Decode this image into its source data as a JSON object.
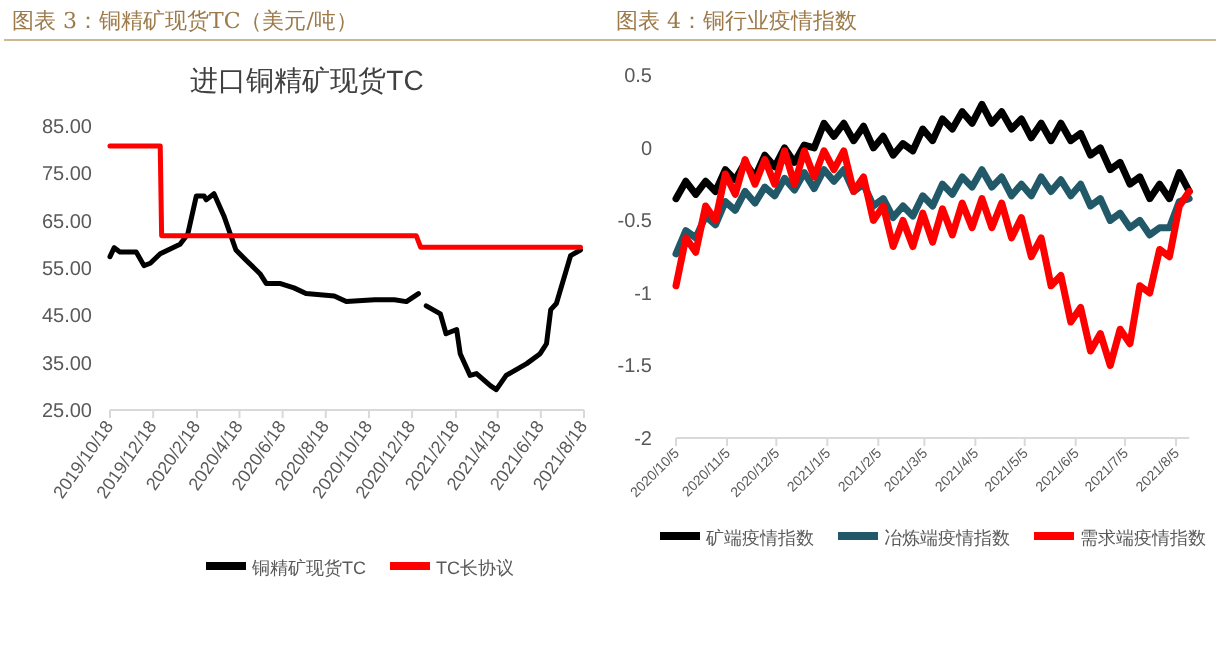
{
  "chart_data": [
    {
      "type": "line",
      "title": "图表 3：铜精矿现货TC（美元/吨）",
      "subtitle": "进口铜精矿现货TC",
      "xlim": [
        "2019-10-18",
        "2021-08-18"
      ],
      "xticks": [
        {
          "value": "2019-10-18",
          "label": "2019/10/18"
        },
        {
          "value": "2019-12-18",
          "label": "2019/12/18"
        },
        {
          "value": "2020-02-18",
          "label": "2020/2/18"
        },
        {
          "value": "2020-04-18",
          "label": "2020/4/18"
        },
        {
          "value": "2020-06-18",
          "label": "2020/6/18"
        },
        {
          "value": "2020-08-18",
          "label": "2020/8/18"
        },
        {
          "value": "2020-10-18",
          "label": "2020/10/18"
        },
        {
          "value": "2020-12-18",
          "label": "2020/12/18"
        },
        {
          "value": "2021-02-18",
          "label": "2021/2/18"
        },
        {
          "value": "2021-04-18",
          "label": "2021/4/18"
        },
        {
          "value": "2021-06-18",
          "label": "2021/6/18"
        },
        {
          "value": "2021-08-18",
          "label": "2021/8/18"
        }
      ],
      "ylim": [
        25,
        85
      ],
      "yticks": [
        {
          "value": 25,
          "label": "25.00"
        },
        {
          "value": 35,
          "label": "35.00"
        },
        {
          "value": 45,
          "label": "45.00"
        },
        {
          "value": 55,
          "label": "55.00"
        },
        {
          "value": 65,
          "label": "65.00"
        },
        {
          "value": 75,
          "label": "75.00"
        },
        {
          "value": 85,
          "label": "85.00"
        }
      ],
      "grid": false,
      "legend": "bottom",
      "series": [
        {
          "name": "铜精矿现货TC",
          "color": "#000000",
          "x": [
            "2019-10-18",
            "2019-10-24",
            "2019-11-01",
            "2019-11-24",
            "2019-12-05",
            "2019-12-14",
            "2019-12-28",
            "2020-01-25",
            "2020-02-05",
            "2020-02-17",
            "2020-02-28",
            "2020-03-02",
            "2020-03-13",
            "2020-03-27",
            "2020-04-13",
            "2020-04-27",
            "2020-05-17",
            "2020-05-26",
            "2020-06-15",
            "2020-07-04",
            "2020-07-21",
            "2020-08-30",
            "2020-09-16",
            "2020-10-26",
            "2020-11-23",
            "2020-12-10",
            "2020-12-27",
            "2021-01-01",
            "2021-01-07",
            "2021-01-27",
            "2021-02-04",
            "2021-02-19",
            "2021-02-24",
            "2021-03-10",
            "2021-03-19",
            "2021-04-08",
            "2021-04-16",
            "2021-04-30",
            "2021-05-29",
            "2021-06-17",
            "2021-06-26",
            "2021-07-02",
            "2021-07-10",
            "2021-07-30",
            "2021-08-13"
          ],
          "values": [
            57.4,
            59.3,
            58.4,
            58.4,
            55.5,
            56,
            58,
            60,
            62.2,
            70.2,
            70.2,
            69.4,
            70.7,
            66,
            58.8,
            56.7,
            53.8,
            51.7,
            51.7,
            50.8,
            49.6,
            49.1,
            47.9,
            48.3,
            48.3,
            47.9,
            49.6,
            null,
            47,
            45.3,
            41.1,
            42,
            36.9,
            32.3,
            32.7,
            30.1,
            29.3,
            32.3,
            34.8,
            36.9,
            39,
            46.2,
            47.5,
            57.6,
            58.8
          ]
        },
        {
          "name": "TC长协议",
          "color": "#ff0000",
          "x": [
            "2019-10-18",
            "2019-12-28",
            "2019-12-30",
            "2020-12-24",
            "2020-12-30",
            "2021-08-13"
          ],
          "values": [
            80.8,
            80.8,
            61.8,
            61.8,
            59.4,
            59.4
          ]
        }
      ]
    },
    {
      "type": "line",
      "title": "图表 4：铜行业疫情指数",
      "xlim": [
        "2020-10-05",
        "2021-08-13"
      ],
      "xticks": [
        {
          "value": "2020-10-05",
          "label": "2020/10/5"
        },
        {
          "value": "2020-11-05",
          "label": "2020/11/5"
        },
        {
          "value": "2020-12-05",
          "label": "2020/12/5"
        },
        {
          "value": "2021-01-05",
          "label": "2021/1/5"
        },
        {
          "value": "2021-02-05",
          "label": "2021/2/5"
        },
        {
          "value": "2021-03-05",
          "label": "2021/3/5"
        },
        {
          "value": "2021-04-05",
          "label": "2021/4/5"
        },
        {
          "value": "2021-05-05",
          "label": "2021/5/5"
        },
        {
          "value": "2021-06-05",
          "label": "2021/6/5"
        },
        {
          "value": "2021-07-05",
          "label": "2021/7/5"
        },
        {
          "value": "2021-08-05",
          "label": "2021/8/5"
        }
      ],
      "ylim": [
        -2,
        0.5
      ],
      "yticks": [
        -2,
        -1.5,
        -1,
        -0.5,
        0,
        0.5
      ],
      "grid": false,
      "legend": "bottom",
      "x": [
        "2020-10-05",
        "2020-10-11",
        "2020-10-17",
        "2020-10-23",
        "2020-10-29",
        "2020-11-04",
        "2020-11-10",
        "2020-11-16",
        "2020-11-22",
        "2020-11-28",
        "2020-12-04",
        "2020-12-10",
        "2020-12-16",
        "2020-12-22",
        "2020-12-28",
        "2021-01-03",
        "2021-01-09",
        "2021-01-15",
        "2021-01-21",
        "2021-01-27",
        "2021-02-02",
        "2021-02-08",
        "2021-02-14",
        "2021-02-20",
        "2021-02-26",
        "2021-03-04",
        "2021-03-10",
        "2021-03-16",
        "2021-03-22",
        "2021-03-28",
        "2021-04-03",
        "2021-04-09",
        "2021-04-15",
        "2021-04-21",
        "2021-04-27",
        "2021-05-03",
        "2021-05-09",
        "2021-05-15",
        "2021-05-21",
        "2021-05-27",
        "2021-06-02",
        "2021-06-08",
        "2021-06-14",
        "2021-06-20",
        "2021-06-26",
        "2021-07-02",
        "2021-07-08",
        "2021-07-14",
        "2021-07-20",
        "2021-07-26",
        "2021-08-01",
        "2021-08-07",
        "2021-08-13"
      ],
      "series": [
        {
          "name": "矿端疫情指数",
          "color": "#000000",
          "values": [
            -0.35,
            -0.23,
            -0.32,
            -0.23,
            -0.3,
            -0.15,
            -0.22,
            -0.1,
            -0.2,
            -0.05,
            -0.13,
            0,
            -0.1,
            0.02,
            0,
            0.17,
            0.08,
            0.17,
            0.05,
            0.15,
            0,
            0.08,
            -0.05,
            0.03,
            -0.02,
            0.13,
            0.05,
            0.2,
            0.13,
            0.25,
            0.17,
            0.3,
            0.17,
            0.25,
            0.13,
            0.2,
            0.07,
            0.17,
            0.05,
            0.17,
            0.05,
            0.1,
            -0.05,
            0,
            -0.15,
            -0.1,
            -0.25,
            -0.2,
            -0.35,
            -0.25,
            -0.35,
            -0.17,
            -0.3
          ]
        },
        {
          "name": "冶炼端疫情指数",
          "color": "#215968",
          "values": [
            -0.73,
            -0.57,
            -0.62,
            -0.47,
            -0.53,
            -0.37,
            -0.43,
            -0.3,
            -0.38,
            -0.27,
            -0.33,
            -0.21,
            -0.29,
            -0.17,
            -0.28,
            -0.15,
            -0.23,
            -0.15,
            -0.3,
            -0.25,
            -0.4,
            -0.35,
            -0.48,
            -0.4,
            -0.47,
            -0.33,
            -0.4,
            -0.25,
            -0.32,
            -0.2,
            -0.27,
            -0.15,
            -0.27,
            -0.2,
            -0.33,
            -0.25,
            -0.33,
            -0.2,
            -0.3,
            -0.22,
            -0.33,
            -0.25,
            -0.4,
            -0.35,
            -0.5,
            -0.45,
            -0.55,
            -0.5,
            -0.6,
            -0.55,
            -0.55,
            -0.37,
            -0.35
          ]
        },
        {
          "name": "需求端疫情指数",
          "color": "#ff0000",
          "values": [
            -0.95,
            -0.62,
            -0.72,
            -0.4,
            -0.5,
            -0.18,
            -0.32,
            -0.08,
            -0.25,
            -0.08,
            -0.25,
            -0.02,
            -0.25,
            -0.02,
            -0.2,
            -0.02,
            -0.15,
            -0.02,
            -0.3,
            -0.2,
            -0.5,
            -0.4,
            -0.68,
            -0.5,
            -0.68,
            -0.45,
            -0.65,
            -0.42,
            -0.6,
            -0.38,
            -0.55,
            -0.35,
            -0.55,
            -0.38,
            -0.62,
            -0.48,
            -0.75,
            -0.62,
            -0.95,
            -0.88,
            -1.2,
            -1.1,
            -1.4,
            -1.28,
            -1.5,
            -1.25,
            -1.35,
            -0.95,
            -1,
            -0.7,
            -0.75,
            -0.4,
            -0.3
          ]
        }
      ]
    }
  ]
}
